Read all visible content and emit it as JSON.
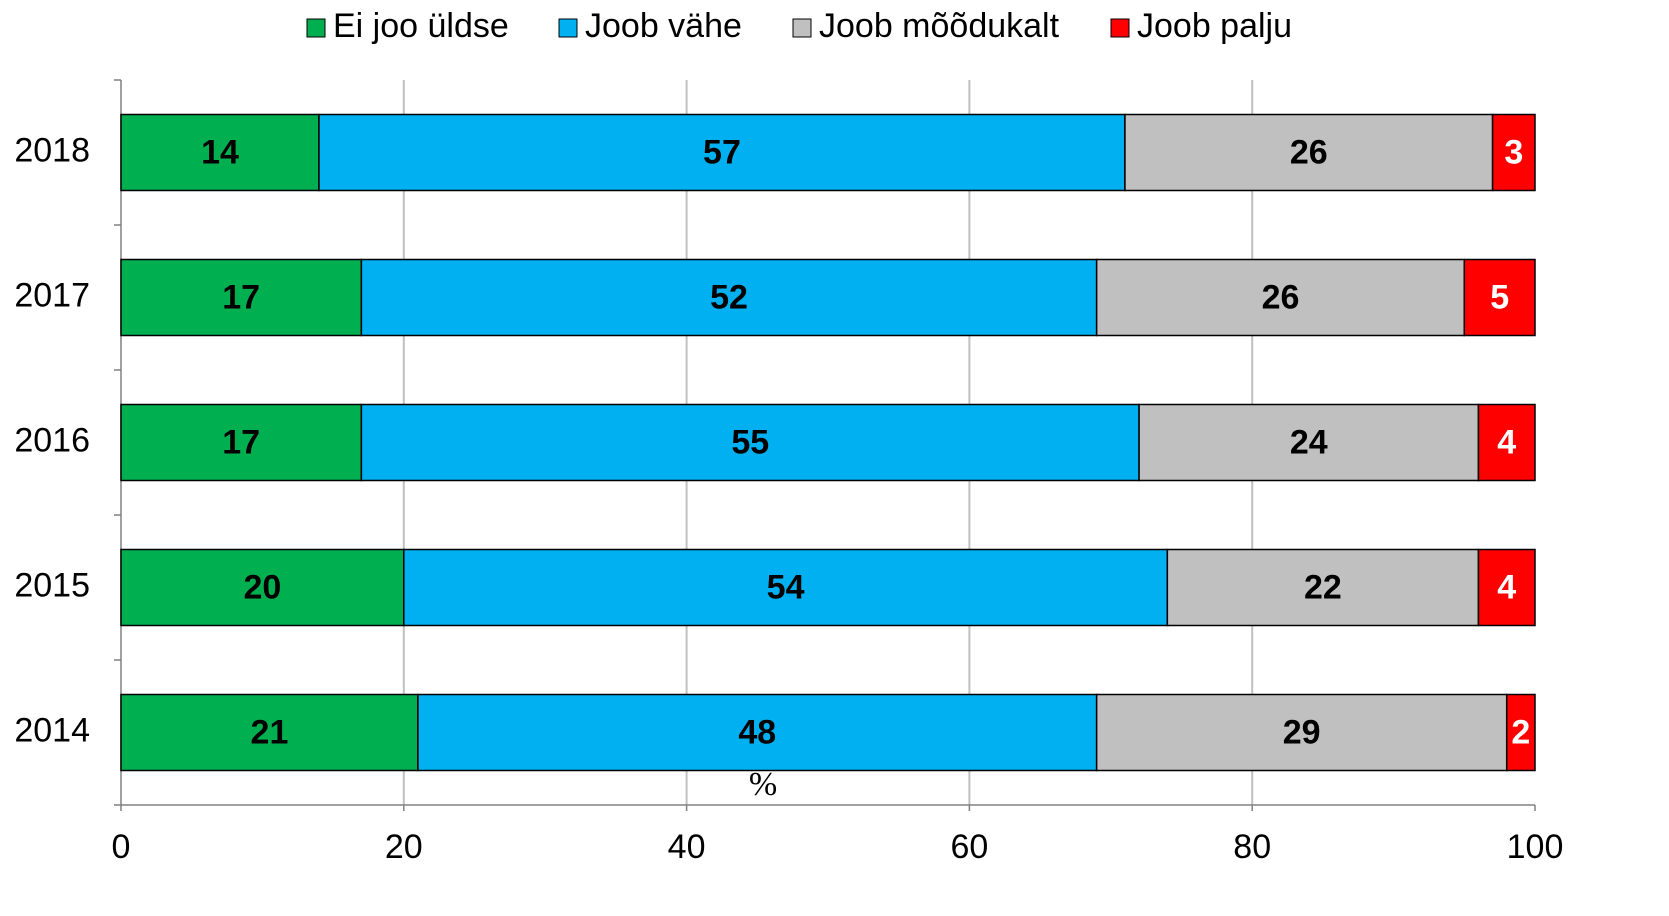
{
  "chart_data": {
    "type": "stacked_bar_horizontal",
    "categories": [
      "2018",
      "2017",
      "2016",
      "2015",
      "2014"
    ],
    "series": [
      {
        "name": "Ei joo üldse",
        "color": "#00b050",
        "values": [
          14,
          17,
          17,
          20,
          21
        ]
      },
      {
        "name": "Joob vähe",
        "color": "#00b0f0",
        "values": [
          57,
          52,
          55,
          54,
          48
        ]
      },
      {
        "name": "Joob mõõdukalt",
        "color": "#c0c0c0",
        "values": [
          26,
          26,
          24,
          22,
          29
        ]
      },
      {
        "name": "Joob palju",
        "color": "#ff0000",
        "values": [
          3,
          5,
          4,
          4,
          2
        ]
      }
    ],
    "x_label": "%",
    "xlim": [
      0,
      100
    ],
    "xticks": [
      0,
      20,
      40,
      60,
      80,
      100
    ],
    "grid": true,
    "legend": "top"
  }
}
